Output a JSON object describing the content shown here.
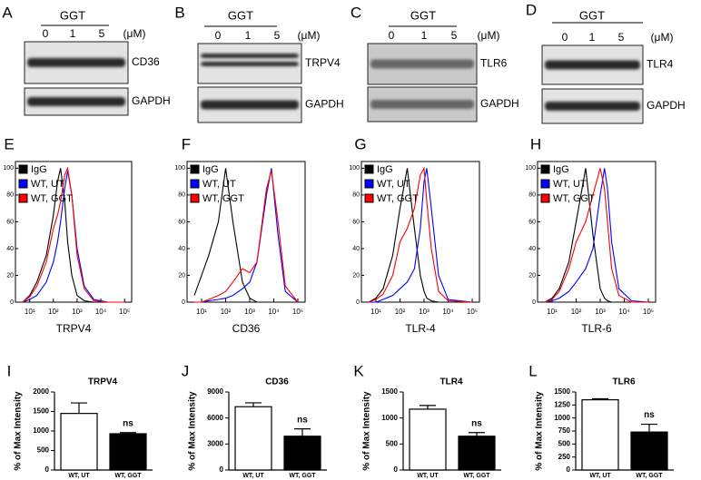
{
  "blots": [
    {
      "panel": "A",
      "treatment": "GGT",
      "doses": [
        "0",
        "1",
        "5"
      ],
      "unit": "(μM)",
      "target": "CD36",
      "control": "GAPDH"
    },
    {
      "panel": "B",
      "treatment": "GGT",
      "doses": [
        "0",
        "1",
        "5"
      ],
      "unit": "(μM)",
      "target": "TRPV4",
      "control": "GAPDH"
    },
    {
      "panel": "C",
      "treatment": "GGT",
      "doses": [
        "0",
        "1",
        "5"
      ],
      "unit": "(μM)",
      "target": "TLR6",
      "control": "GAPDH"
    },
    {
      "panel": "D",
      "treatment": "GGT",
      "doses": [
        "0",
        "1",
        "5"
      ],
      "unit": "(μM)",
      "target": "TLR4",
      "control": "GAPDH"
    }
  ],
  "chart_data": [
    {
      "type": "line",
      "panel": "E",
      "xlabel": "TRPV4",
      "log_x": true,
      "x": [
        5,
        10,
        20,
        50,
        100,
        150,
        200,
        300,
        400,
        600,
        1000,
        2000,
        5000,
        20000,
        100000
      ],
      "series": [
        {
          "name": "IgG",
          "color": "#000000",
          "values": [
            0,
            5,
            15,
            35,
            65,
            90,
            100,
            75,
            45,
            20,
            5,
            1,
            0,
            0,
            0
          ]
        },
        {
          "name": "WT, UT",
          "color": "#0000ff",
          "values": [
            0,
            2,
            5,
            15,
            30,
            45,
            60,
            85,
            98,
            80,
            40,
            12,
            2,
            0,
            0
          ]
        },
        {
          "name": "WT, GGT",
          "color": "#ff0000",
          "values": [
            0,
            4,
            12,
            30,
            55,
            65,
            75,
            95,
            100,
            80,
            35,
            10,
            1,
            0,
            0
          ]
        }
      ],
      "xlim": [
        2.5,
        200000
      ],
      "xticks": [
        {
          "value": 10,
          "label": "10¹"
        },
        {
          "value": 100,
          "label": "10²"
        },
        {
          "value": 1000,
          "label": "10³"
        },
        {
          "value": 10000,
          "label": "10⁴"
        },
        {
          "value": 100000,
          "label": "10⁵"
        }
      ],
      "ylim": [
        0,
        105
      ],
      "yticks": [
        0,
        20,
        40,
        60,
        80,
        100
      ]
    },
    {
      "type": "line",
      "panel": "F",
      "xlabel": "CD36",
      "log_x": true,
      "x": [
        5,
        10,
        20,
        50,
        100,
        200,
        500,
        1000,
        2000,
        5000,
        8000,
        15000,
        30000,
        100000
      ],
      "series": [
        {
          "name": "IgG",
          "color": "#000000",
          "values": [
            5,
            20,
            35,
            60,
            100,
            60,
            15,
            3,
            0,
            0,
            0,
            0,
            0,
            0
          ]
        },
        {
          "name": "WT, UT",
          "color": "#0000ff",
          "values": [
            0,
            0,
            1,
            2,
            3,
            5,
            10,
            15,
            30,
            80,
            100,
            50,
            8,
            0
          ]
        },
        {
          "name": "WT, GGT",
          "color": "#ff0000",
          "values": [
            0,
            0,
            2,
            5,
            8,
            15,
            25,
            22,
            30,
            85,
            98,
            60,
            12,
            0
          ]
        }
      ],
      "xlim": [
        2.5,
        200000
      ],
      "xticks": [
        {
          "value": 10,
          "label": "10¹"
        },
        {
          "value": 100,
          "label": "10²"
        },
        {
          "value": 1000,
          "label": "10³"
        },
        {
          "value": 10000,
          "label": "10⁴"
        },
        {
          "value": 100000,
          "label": "10⁵"
        }
      ],
      "ylim": [
        0,
        105
      ],
      "yticks": [
        0,
        20,
        40,
        60,
        80,
        100
      ]
    },
    {
      "type": "line",
      "panel": "G",
      "xlabel": "TLR-4",
      "log_x": true,
      "x": [
        5,
        10,
        20,
        50,
        100,
        200,
        400,
        700,
        1000,
        1300,
        2000,
        4000,
        10000,
        100000
      ],
      "series": [
        {
          "name": "IgG",
          "color": "#000000",
          "values": [
            0,
            3,
            10,
            35,
            70,
            100,
            55,
            20,
            8,
            3,
            1,
            0,
            0,
            0
          ]
        },
        {
          "name": "WT, UT",
          "color": "#0000ff",
          "values": [
            0,
            0,
            2,
            5,
            10,
            15,
            25,
            55,
            90,
            100,
            70,
            20,
            2,
            0
          ]
        },
        {
          "name": "WT, GGT",
          "color": "#ff0000",
          "values": [
            0,
            2,
            6,
            20,
            45,
            55,
            70,
            95,
            100,
            75,
            40,
            8,
            1,
            0
          ]
        }
      ],
      "xlim": [
        2.5,
        200000
      ],
      "xticks": [
        {
          "value": 10,
          "label": "10¹"
        },
        {
          "value": 100,
          "label": "10²"
        },
        {
          "value": 1000,
          "label": "10³"
        },
        {
          "value": 10000,
          "label": "10⁴"
        },
        {
          "value": 100000,
          "label": "10⁵"
        }
      ],
      "ylim": [
        0,
        105
      ],
      "yticks": [
        0,
        20,
        40,
        60,
        80,
        100
      ]
    },
    {
      "type": "line",
      "panel": "H",
      "xlabel": "TLR-6",
      "log_x": true,
      "x": [
        5,
        10,
        20,
        50,
        100,
        250,
        500,
        1000,
        1500,
        2000,
        3000,
        6000,
        20000,
        100000
      ],
      "series": [
        {
          "name": "IgG",
          "color": "#000000",
          "values": [
            0,
            3,
            10,
            30,
            60,
            100,
            50,
            10,
            3,
            1,
            0,
            0,
            0,
            0
          ]
        },
        {
          "name": "WT, UT",
          "color": "#0000ff",
          "values": [
            0,
            1,
            3,
            8,
            15,
            25,
            40,
            80,
            100,
            85,
            45,
            10,
            1,
            0
          ]
        },
        {
          "name": "WT, GGT",
          "color": "#ff0000",
          "values": [
            0,
            2,
            8,
            25,
            45,
            60,
            80,
            100,
            85,
            60,
            25,
            5,
            0,
            0
          ]
        }
      ],
      "xlim": [
        2.5,
        200000
      ],
      "xticks": [
        {
          "value": 10,
          "label": "10¹"
        },
        {
          "value": 100,
          "label": "10²"
        },
        {
          "value": 1000,
          "label": "10³"
        },
        {
          "value": 10000,
          "label": "10⁴"
        },
        {
          "value": 100000,
          "label": "10⁵"
        }
      ],
      "ylim": [
        0,
        105
      ],
      "yticks": [
        0,
        20,
        40,
        60,
        80,
        100
      ]
    },
    {
      "type": "bar",
      "panel": "I",
      "title": "TRPV4",
      "ylabel": "% of Max Intensity",
      "categories": [
        "WT, UT",
        "WT, GGT"
      ],
      "values": [
        1450,
        930
      ],
      "errors": [
        270,
        30
      ],
      "colors": [
        "#ffffff",
        "#000000"
      ],
      "annotation": "ns",
      "ylim": [
        0,
        2000
      ],
      "yticks": [
        0,
        500,
        1000,
        1500,
        2000
      ]
    },
    {
      "type": "bar",
      "panel": "J",
      "title": "CD36",
      "ylabel": "% of Max Intensity",
      "categories": [
        "WT, UT",
        "WT, GGT"
      ],
      "values": [
        7300,
        3900
      ],
      "errors": [
        450,
        850
      ],
      "colors": [
        "#ffffff",
        "#000000"
      ],
      "annotation": "ns",
      "ylim": [
        0,
        9000
      ],
      "yticks": [
        0,
        3000,
        6000,
        9000
      ]
    },
    {
      "type": "bar",
      "panel": "K",
      "title": "TLR4",
      "ylabel": "% of Max Intensity",
      "categories": [
        "WT, UT",
        "WT, GGT"
      ],
      "values": [
        1170,
        650
      ],
      "errors": [
        70,
        70
      ],
      "colors": [
        "#ffffff",
        "#000000"
      ],
      "annotation": "ns",
      "ylim": [
        0,
        1500
      ],
      "yticks": [
        0,
        500,
        1000,
        1500
      ]
    },
    {
      "type": "bar",
      "panel": "L",
      "title": "TLR6",
      "ylabel": "% of Max Intensity",
      "categories": [
        "WT, UT",
        "WT, GGT"
      ],
      "values": [
        1350,
        730
      ],
      "errors": [
        20,
        150
      ],
      "colors": [
        "#ffffff",
        "#000000"
      ],
      "annotation": "ns",
      "ylim": [
        0,
        1500
      ],
      "yticks": [
        0,
        250,
        500,
        750,
        1000,
        1250,
        1500
      ]
    }
  ]
}
